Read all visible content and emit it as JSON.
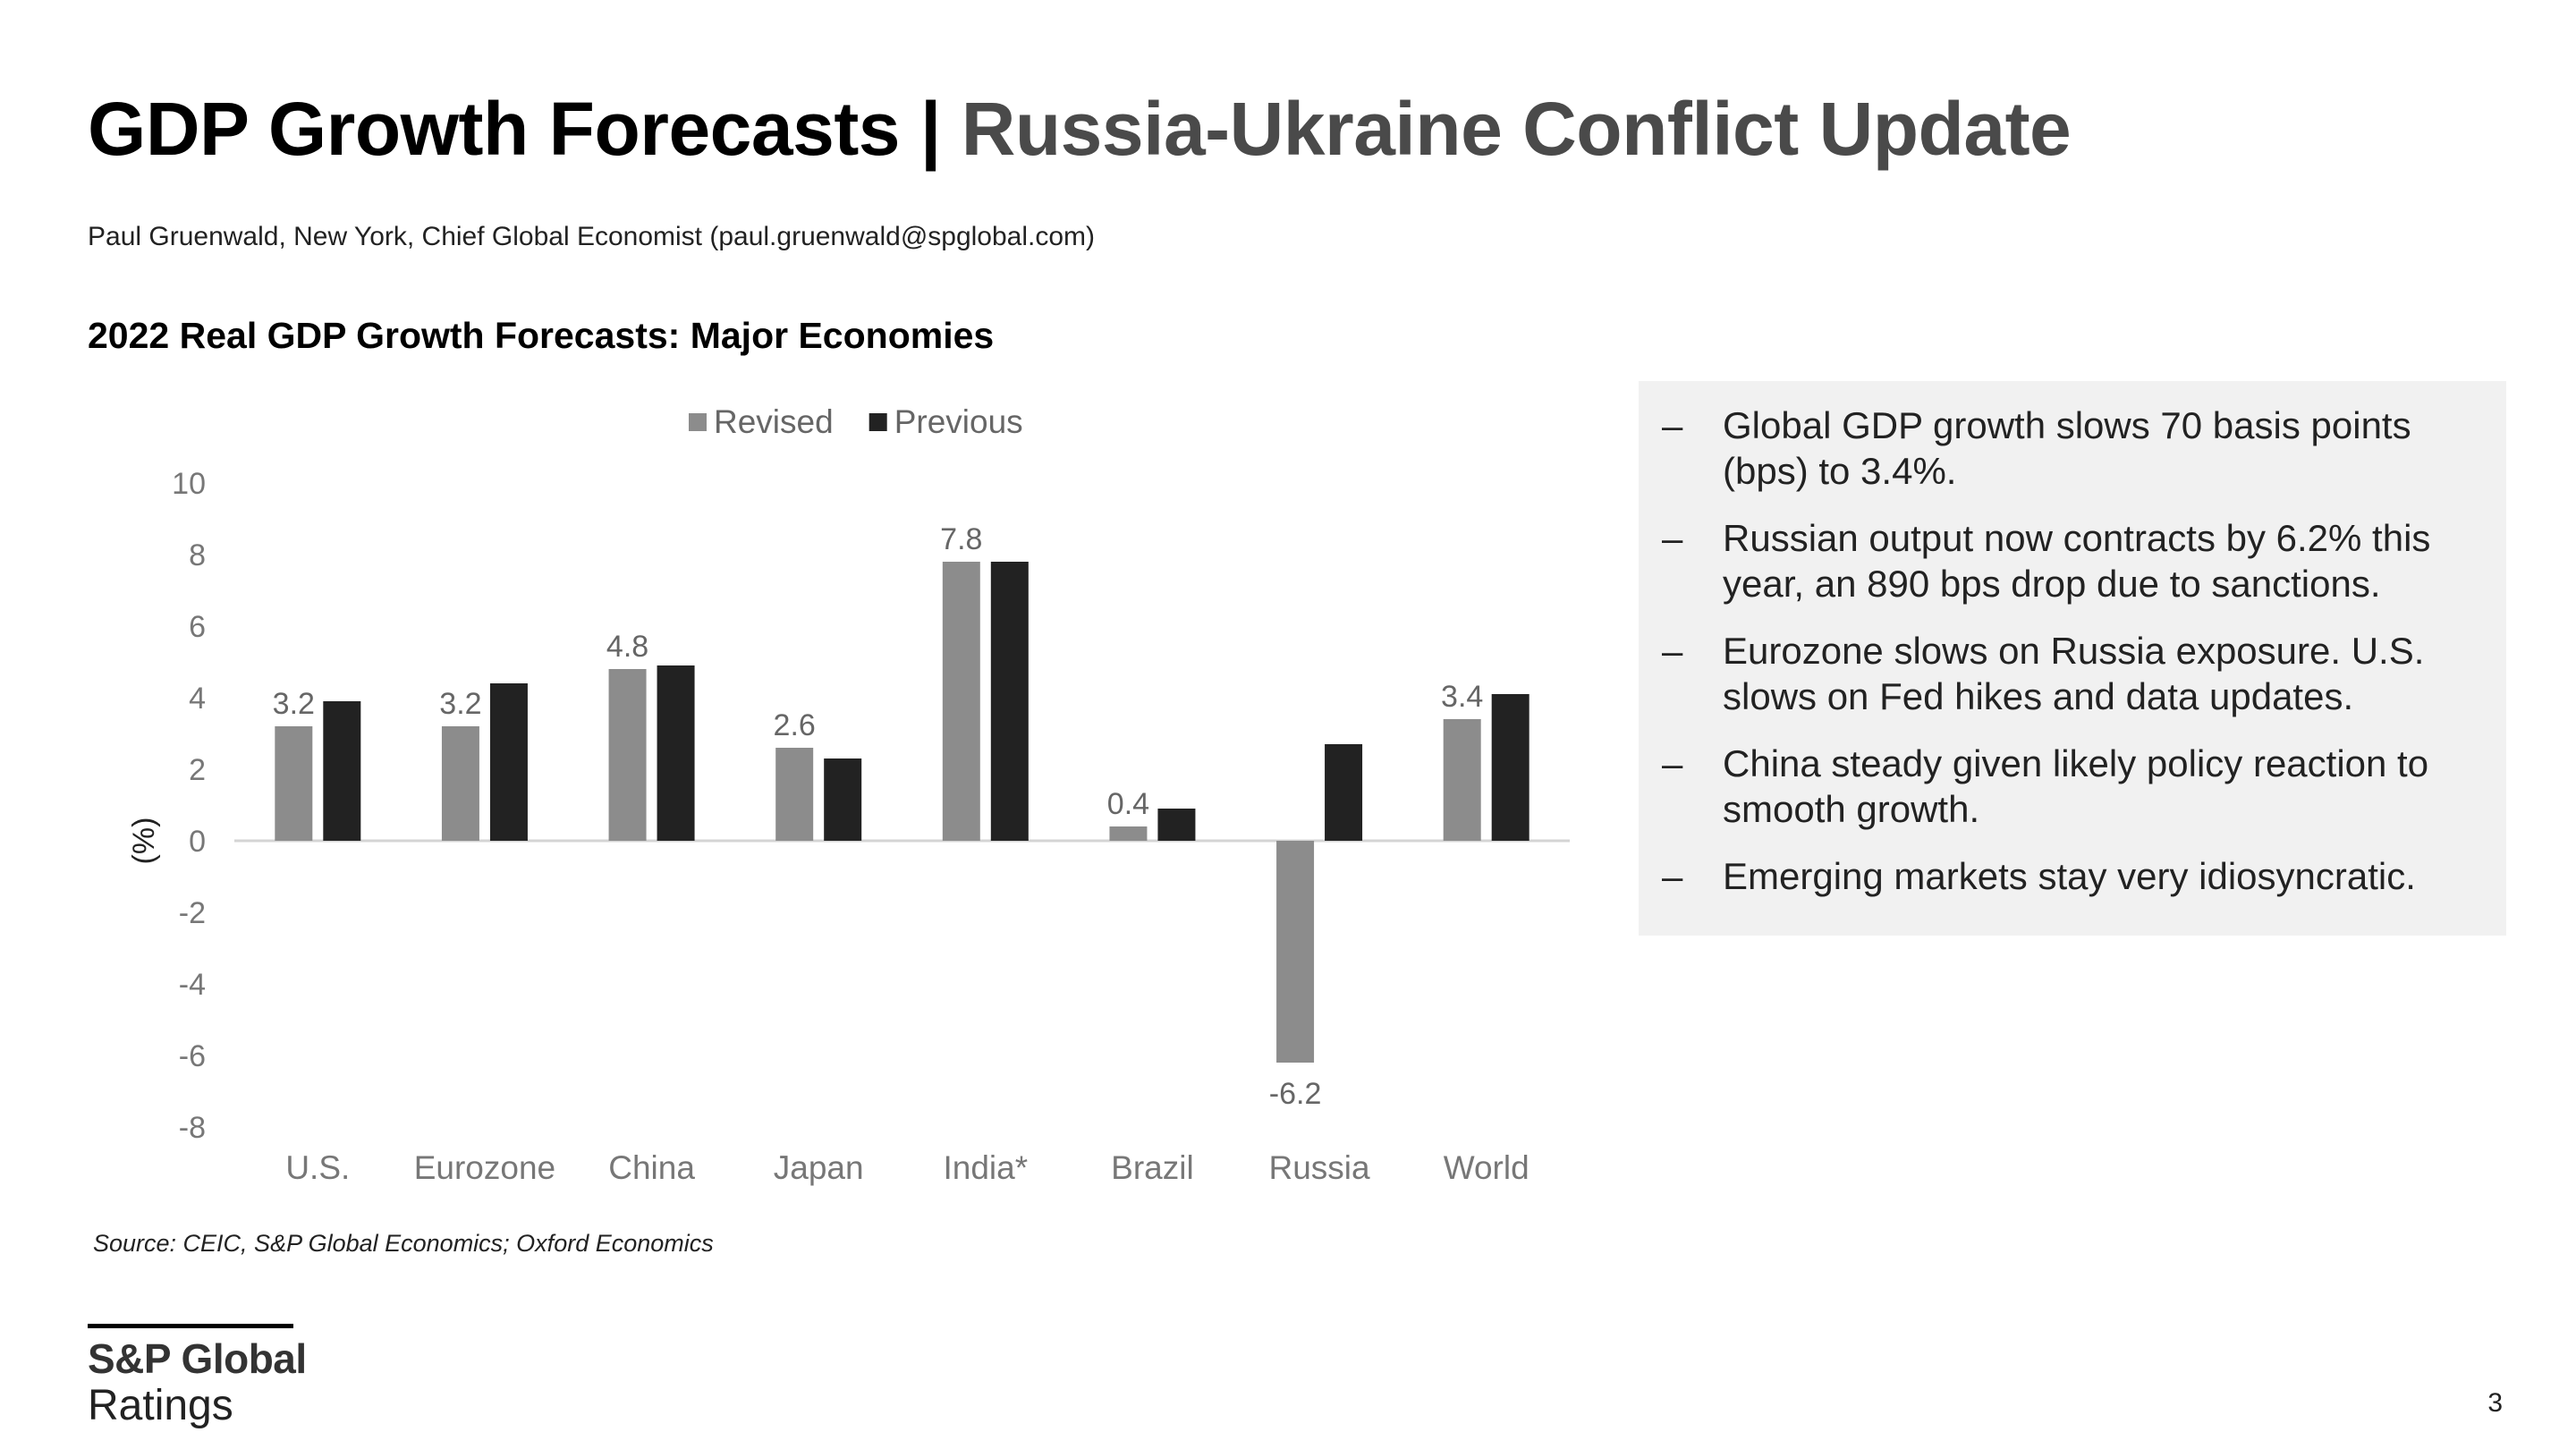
{
  "header": {
    "title_main": "GDP Growth Forecasts | ",
    "title_sub": "Russia-Ukraine Conflict Update",
    "author": "Paul Gruenwald, New York, Chief Global Economist (paul.gruenwald@spglobal.com)"
  },
  "chart_data": {
    "type": "bar",
    "title": "2022 Real GDP Growth Forecasts: Major Economies",
    "xlabel": "",
    "ylabel": "(%)",
    "ylim": [
      -8,
      10
    ],
    "yticks": [
      "10",
      "8",
      "6",
      "4",
      "2",
      "0",
      "-2",
      "-4",
      "-6",
      "-8"
    ],
    "grid": false,
    "legend_position": "top",
    "categories": [
      "U.S.",
      "Eurozone",
      "China",
      "Japan",
      "India*",
      "Brazil",
      "Russia",
      "World"
    ],
    "series": [
      {
        "name": "Revised",
        "color": "#8c8c8c",
        "values": [
          3.2,
          3.2,
          4.8,
          2.6,
          7.8,
          0.4,
          -6.2,
          3.4
        ]
      },
      {
        "name": "Previous",
        "color": "#222222",
        "values": [
          3.9,
          4.4,
          4.9,
          2.3,
          7.8,
          0.9,
          2.7,
          4.1
        ]
      }
    ],
    "data_labels": [
      "3.2",
      "3.2",
      "4.8",
      "2.6",
      "7.8",
      "0.4",
      "-6.2",
      "3.4"
    ]
  },
  "source_note": "Source: CEIC, S&P Global Economics; Oxford Economics",
  "bullets": [
    "Global GDP growth slows 70 basis points (bps) to 3.4%.",
    "Russian output now contracts by 6.2% this year, an 890 bps drop due to sanctions.",
    "Eurozone slows on Russia exposure. U.S. slows on Fed hikes and data updates.",
    "China steady given likely policy reaction to smooth growth.",
    "Emerging markets stay very idiosyncratic."
  ],
  "bullet_marker": "–",
  "logo": {
    "line1": "S&P Global",
    "line2": "Ratings"
  },
  "page_number": "3"
}
